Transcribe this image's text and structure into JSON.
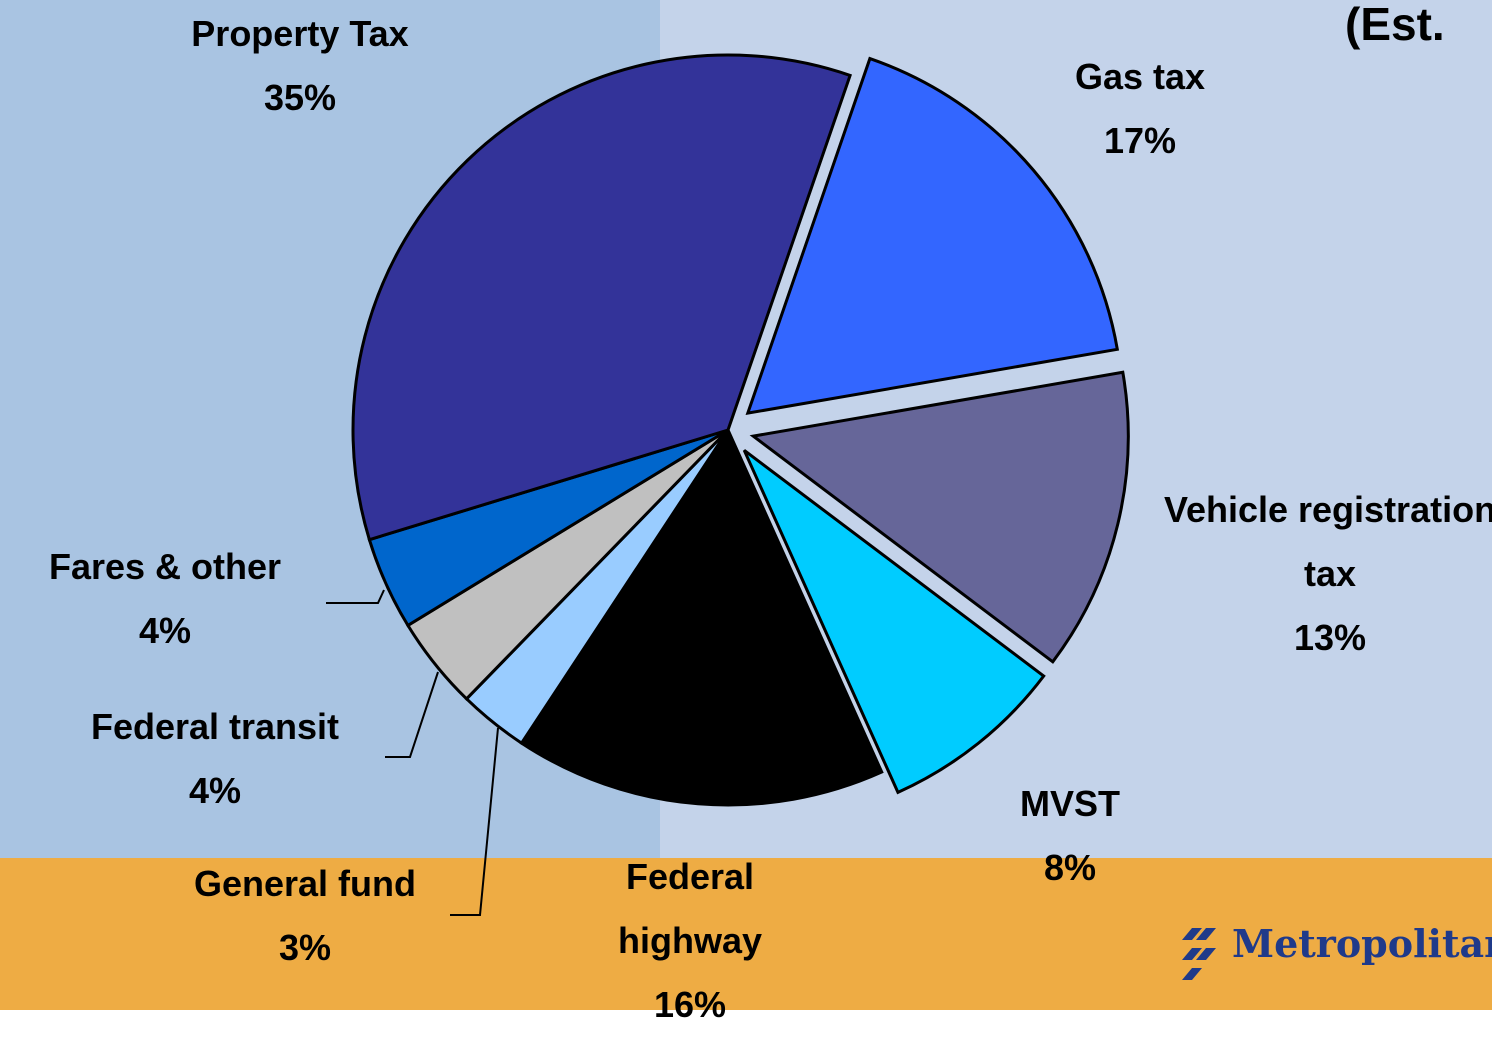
{
  "chart_data": {
    "type": "pie",
    "title": "(Est.",
    "categories": [
      "Gas tax",
      "Vehicle registration tax",
      "MVST",
      "Federal highway",
      "General fund",
      "Federal transit",
      "Fares & other",
      "Property Tax"
    ],
    "values": [
      17,
      13,
      8,
      16,
      3,
      4,
      4,
      35
    ],
    "value_labels": [
      "17%",
      "13%",
      "8%",
      "16%",
      "3%",
      "4%",
      "4%",
      "35%"
    ],
    "colors": [
      "#3366ff",
      "#666699",
      "#00ccff",
      "#000000",
      "#99ccff",
      "#c0c0c0",
      "#0066cc",
      "#333399"
    ],
    "exploded": [
      true,
      true,
      true,
      false,
      false,
      false,
      false,
      false
    ]
  },
  "logo": "Metropolitan"
}
